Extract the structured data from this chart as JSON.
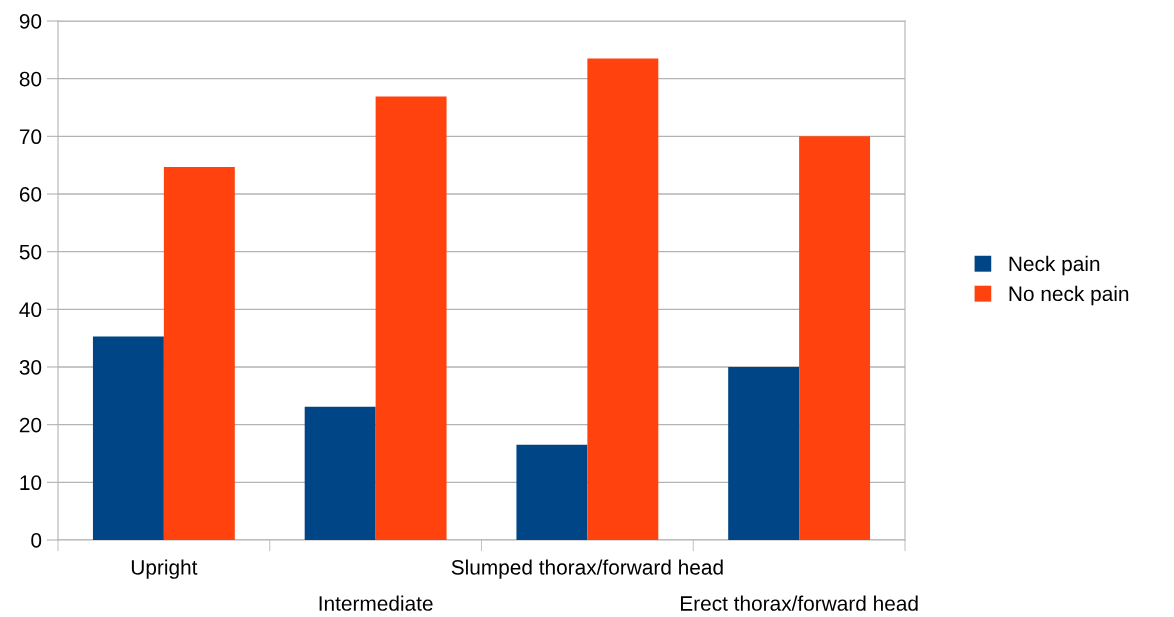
{
  "chart_data": {
    "type": "bar",
    "categories": [
      "Upright",
      "Intermediate",
      "Slumped thorax/forward head",
      "Erect thorax/forward head"
    ],
    "series": [
      {
        "name": "Neck pain",
        "color": "#004586",
        "values": [
          35.3,
          23.1,
          16.5,
          30.0
        ]
      },
      {
        "name": "No neck pain",
        "color": "#ff420e",
        "values": [
          64.7,
          76.9,
          83.5,
          70.0
        ]
      }
    ],
    "ylim": [
      0,
      90
    ],
    "yticks": [
      0,
      10,
      20,
      30,
      40,
      50,
      60,
      70,
      80,
      90
    ],
    "grid": "y",
    "legend": "right"
  }
}
